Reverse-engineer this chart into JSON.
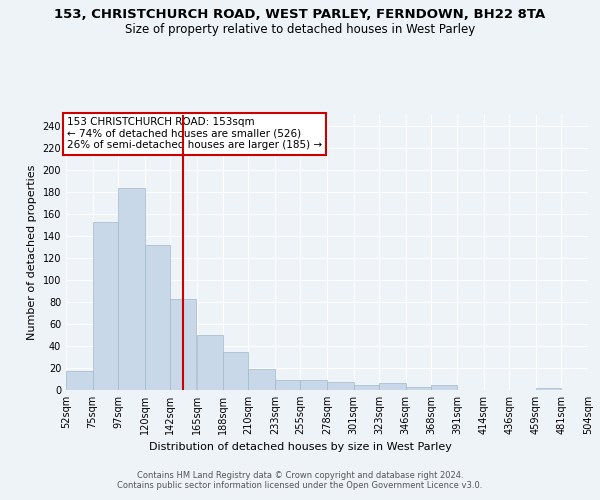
{
  "title": "153, CHRISTCHURCH ROAD, WEST PARLEY, FERNDOWN, BH22 8TA",
  "subtitle": "Size of property relative to detached houses in West Parley",
  "xlabel": "Distribution of detached houses by size in West Parley",
  "ylabel": "Number of detached properties",
  "bar_values": [
    17,
    153,
    184,
    132,
    83,
    50,
    35,
    19,
    9,
    9,
    7,
    5,
    6,
    3,
    5,
    0,
    0,
    0,
    2,
    0
  ],
  "x_labels": [
    "52sqm",
    "75sqm",
    "97sqm",
    "120sqm",
    "142sqm",
    "165sqm",
    "188sqm",
    "210sqm",
    "233sqm",
    "255sqm",
    "278sqm",
    "301sqm",
    "323sqm",
    "346sqm",
    "368sqm",
    "391sqm",
    "414sqm",
    "436sqm",
    "459sqm",
    "481sqm",
    "504sqm"
  ],
  "bar_left_edges": [
    52,
    75,
    97,
    120,
    142,
    165,
    188,
    210,
    233,
    255,
    278,
    301,
    323,
    346,
    368,
    391,
    414,
    436,
    459,
    481
  ],
  "bar_right_edges": [
    75,
    97,
    120,
    142,
    165,
    188,
    210,
    233,
    255,
    278,
    301,
    323,
    346,
    368,
    391,
    414,
    436,
    459,
    481,
    504
  ],
  "all_ticks": [
    52,
    75,
    97,
    120,
    142,
    165,
    188,
    210,
    233,
    255,
    278,
    301,
    323,
    346,
    368,
    391,
    414,
    436,
    459,
    481,
    504
  ],
  "bar_color": "#c8d8e8",
  "bar_edge_color": "#a0b8cc",
  "vline_x": 153,
  "vline_color": "#cc0000",
  "annotation_text": "153 CHRISTCHURCH ROAD: 153sqm\n← 74% of detached houses are smaller (526)\n26% of semi-detached houses are larger (185) →",
  "annotation_box_color": "#ffffff",
  "annotation_box_edge": "#cc0000",
  "ylim": [
    0,
    250
  ],
  "yticks": [
    0,
    20,
    40,
    60,
    80,
    100,
    120,
    140,
    160,
    180,
    200,
    220,
    240
  ],
  "footer": "Contains HM Land Registry data © Crown copyright and database right 2024.\nContains public sector information licensed under the Open Government Licence v3.0.",
  "bg_color": "#eef3f8",
  "grid_color": "#ffffff",
  "title_fontsize": 9.5,
  "subtitle_fontsize": 8.5,
  "xlabel_fontsize": 8,
  "ylabel_fontsize": 8,
  "tick_fontsize": 7,
  "footer_fontsize": 6,
  "annot_fontsize": 7.5
}
